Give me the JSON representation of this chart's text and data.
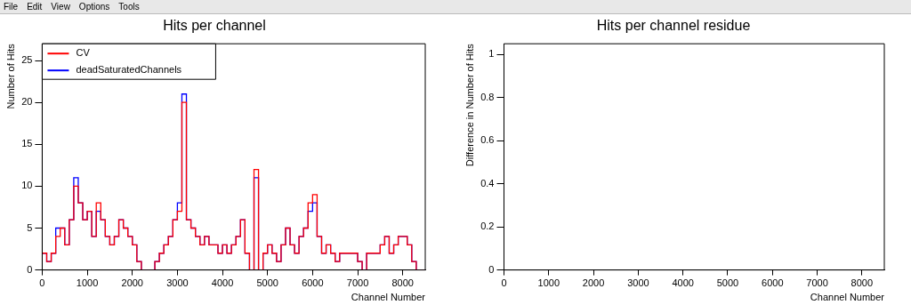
{
  "chart_data": [
    {
      "type": "histogram",
      "title": "Hits per channel",
      "xlabel": "Channel Number",
      "ylabel": "Number of Hits",
      "annotations": [
        "File",
        "Edit",
        "View",
        "Options",
        "Tools"
      ],
      "bins": [
        0,
        100,
        200,
        300,
        400,
        500,
        600,
        700,
        800,
        900,
        1000,
        1100,
        1200,
        1300,
        1400,
        1500,
        1600,
        1700,
        1800,
        1900,
        2000,
        2100,
        2200,
        2300,
        2400,
        2500,
        2600,
        2700,
        2800,
        2900,
        3000,
        3100,
        3200,
        3300,
        3400,
        3500,
        3600,
        3700,
        3800,
        3900,
        4000,
        4100,
        4200,
        4300,
        4400,
        4500,
        4600,
        4700,
        4800,
        4900,
        5000,
        5100,
        5200,
        5300,
        5400,
        5500,
        5600,
        5700,
        5800,
        5900,
        6000,
        6100,
        6200,
        6300,
        6400,
        6500,
        6600,
        6700,
        6800,
        6900,
        7000,
        7100,
        7200,
        7300,
        7400,
        7500,
        7600,
        7700,
        7800,
        7900,
        8000,
        8100,
        8200,
        8300,
        8400,
        8500
      ],
      "series": [
        {
          "name": "CV",
          "color": "#ff0000",
          "values": [
            2,
            1,
            2,
            4,
            5,
            3,
            6,
            10,
            8,
            6,
            7,
            4,
            8,
            6,
            4,
            3,
            4,
            6,
            5,
            4,
            3,
            1,
            0,
            0,
            0,
            1,
            2,
            3,
            4,
            6,
            7,
            20,
            6,
            5,
            4,
            3,
            4,
            3,
            3,
            2,
            3,
            2,
            3,
            4,
            6,
            2,
            0,
            12,
            0,
            2,
            3,
            2,
            1,
            3,
            5,
            3,
            2,
            4,
            5,
            8,
            9,
            4,
            2,
            3,
            2,
            1,
            2,
            2,
            2,
            2,
            1,
            0,
            2,
            2,
            2,
            3,
            4,
            2,
            3,
            4,
            4,
            3,
            1,
            0,
            0
          ]
        },
        {
          "name": "deadSaturatedChannels",
          "color": "#0000ff",
          "values": [
            2,
            1,
            2,
            5,
            5,
            3,
            6,
            11,
            8,
            6,
            7,
            4,
            7,
            6,
            4,
            3,
            4,
            6,
            5,
            4,
            3,
            1,
            0,
            0,
            0,
            1,
            2,
            3,
            4,
            6,
            8,
            21,
            6,
            5,
            4,
            3,
            4,
            3,
            3,
            2,
            3,
            2,
            3,
            4,
            6,
            2,
            0,
            11,
            0,
            2,
            3,
            2,
            1,
            3,
            5,
            3,
            2,
            4,
            5,
            7,
            8,
            4,
            2,
            3,
            2,
            1,
            2,
            2,
            2,
            2,
            1,
            0,
            2,
            2,
            2,
            3,
            4,
            2,
            3,
            4,
            4,
            3,
            1,
            0,
            0
          ]
        }
      ],
      "xlim": [
        0,
        8500
      ],
      "xticks": [
        0,
        1000,
        2000,
        3000,
        4000,
        5000,
        6000,
        7000,
        8000
      ],
      "ylim": [
        0,
        27
      ],
      "yticks": [
        0,
        5,
        10,
        15,
        20,
        25
      ],
      "legend": "top left"
    },
    {
      "type": "step",
      "title": "Hits per channel residue",
      "xlabel": "Channel Number",
      "ylabel": "Difference in Number of Hits",
      "xlim": [
        0,
        8500
      ],
      "xticks": [
        0,
        1000,
        2000,
        3000,
        4000,
        5000,
        6000,
        7000,
        8000
      ],
      "ylim": [
        0,
        1.05
      ],
      "yticks": [
        0,
        0.2,
        0.4,
        0.6,
        0.8,
        1
      ]
    }
  ]
}
